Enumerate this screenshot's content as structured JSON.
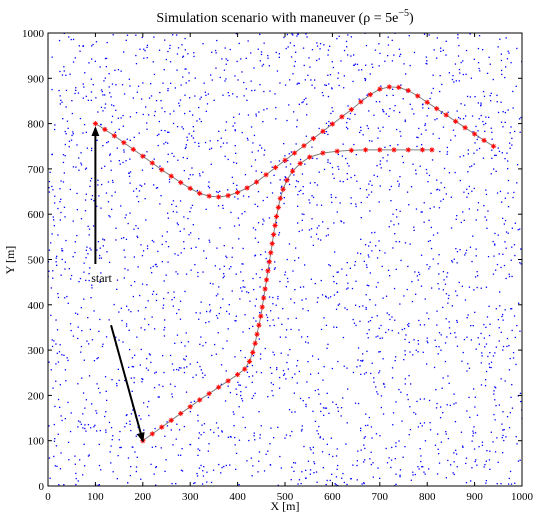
{
  "chart_data": {
    "type": "scatter",
    "title": "Simulation scenario with maneuver (ρ = 5e",
    "title_superscript": "−5",
    "title_close": ")",
    "xlabel": "X [m]",
    "ylabel": "Y [m]",
    "xlim": [
      0,
      1000
    ],
    "ylim": [
      0,
      1000
    ],
    "xticks": [
      0,
      100,
      200,
      300,
      400,
      500,
      600,
      700,
      800,
      900,
      1000
    ],
    "yticks": [
      0,
      100,
      200,
      300,
      400,
      500,
      600,
      700,
      800,
      900,
      1000
    ],
    "grid": false,
    "clutter": {
      "color": "#0000ff",
      "approx_count": 2600,
      "description_points": "uniformly distributed clutter points across the surveillance region"
    },
    "tracks": [
      {
        "color": "#ff0000",
        "line_color": "#808080",
        "points": [
          [
            100,
            800
          ],
          [
            120,
            787
          ],
          [
            140,
            773
          ],
          [
            160,
            758
          ],
          [
            180,
            743
          ],
          [
            200,
            728
          ],
          [
            220,
            713
          ],
          [
            240,
            698
          ],
          [
            260,
            684
          ],
          [
            280,
            670
          ],
          [
            300,
            657
          ],
          [
            320,
            646
          ],
          [
            340,
            640
          ],
          [
            360,
            638
          ],
          [
            380,
            641
          ],
          [
            400,
            648
          ],
          [
            420,
            658
          ],
          [
            440,
            671
          ],
          [
            460,
            687
          ],
          [
            480,
            703
          ],
          [
            500,
            719
          ],
          [
            520,
            735
          ],
          [
            540,
            751
          ],
          [
            560,
            767
          ],
          [
            580,
            783
          ],
          [
            600,
            799
          ],
          [
            620,
            815
          ],
          [
            640,
            831
          ],
          [
            660,
            848
          ],
          [
            680,
            864
          ],
          [
            700,
            876
          ],
          [
            720,
            881
          ],
          [
            740,
            880
          ],
          [
            760,
            873
          ],
          [
            780,
            861
          ],
          [
            800,
            847
          ],
          [
            820,
            833
          ],
          [
            840,
            819
          ],
          [
            860,
            805
          ],
          [
            880,
            791
          ],
          [
            900,
            777
          ],
          [
            920,
            763
          ],
          [
            940,
            750
          ]
        ]
      },
      {
        "color": "#ff0000",
        "line_color": "#808080",
        "points": [
          [
            200,
            100
          ],
          [
            220,
            115
          ],
          [
            240,
            130
          ],
          [
            260,
            145
          ],
          [
            280,
            160
          ],
          [
            300,
            175
          ],
          [
            320,
            190
          ],
          [
            340,
            204
          ],
          [
            360,
            218
          ],
          [
            380,
            232
          ],
          [
            400,
            246
          ],
          [
            415,
            258
          ],
          [
            425,
            275
          ],
          [
            432,
            295
          ],
          [
            437,
            315
          ],
          [
            441,
            335
          ],
          [
            445,
            355
          ],
          [
            449,
            375
          ],
          [
            452,
            395
          ],
          [
            455,
            415
          ],
          [
            458,
            435
          ],
          [
            461,
            455
          ],
          [
            464,
            475
          ],
          [
            467,
            495
          ],
          [
            470,
            515
          ],
          [
            473,
            535
          ],
          [
            476,
            555
          ],
          [
            479,
            575
          ],
          [
            482,
            595
          ],
          [
            486,
            615
          ],
          [
            490,
            635
          ],
          [
            496,
            655
          ],
          [
            504,
            675
          ],
          [
            516,
            695
          ],
          [
            532,
            712
          ],
          [
            552,
            726
          ],
          [
            580,
            735
          ],
          [
            610,
            739
          ],
          [
            640,
            741
          ],
          [
            670,
            742
          ],
          [
            700,
            742
          ],
          [
            730,
            742
          ],
          [
            760,
            742
          ],
          [
            790,
            742
          ],
          [
            810,
            742
          ]
        ]
      }
    ],
    "annotations": [
      {
        "text": "start",
        "position_x": 113,
        "position_y": 450
      }
    ],
    "arrows": [
      {
        "from": [
          100,
          490
        ],
        "to": [
          100,
          790
        ]
      },
      {
        "from": [
          133,
          355
        ],
        "to": [
          200,
          100
        ]
      }
    ]
  }
}
